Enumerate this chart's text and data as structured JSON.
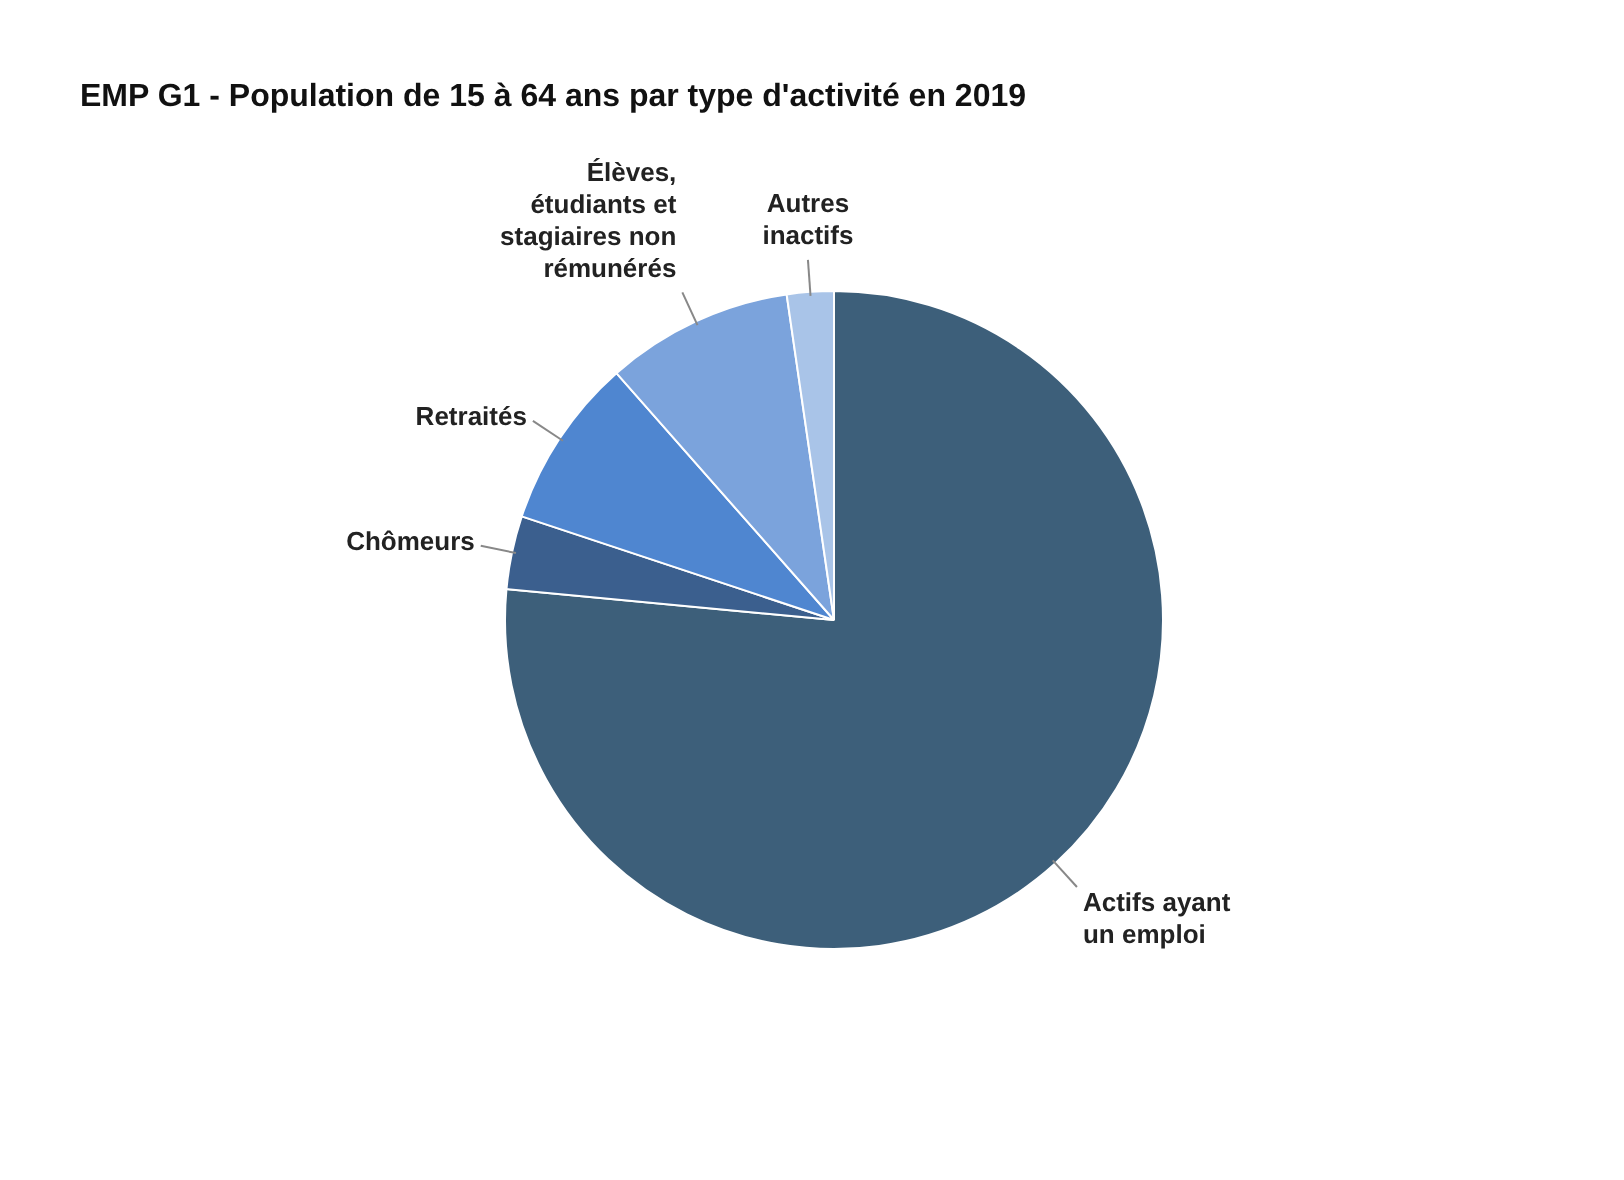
{
  "chart_data": {
    "type": "pie",
    "title": "EMP G1 - Population de 15 à 64 ans par type d'activité en 2019",
    "categories": [
      "Actifs ayant un emploi",
      "Chômeurs",
      "Retraités",
      "Élèves, étudiants et stagiaires non rémunérés",
      "Autres inactifs"
    ],
    "values": [
      76.5,
      3.6,
      8.4,
      9.2,
      2.3
    ],
    "colors": [
      "#3d5f7a",
      "#3b5f8e",
      "#4f86d0",
      "#7ba3dc",
      "#a9c4e8"
    ],
    "legend": false
  }
}
